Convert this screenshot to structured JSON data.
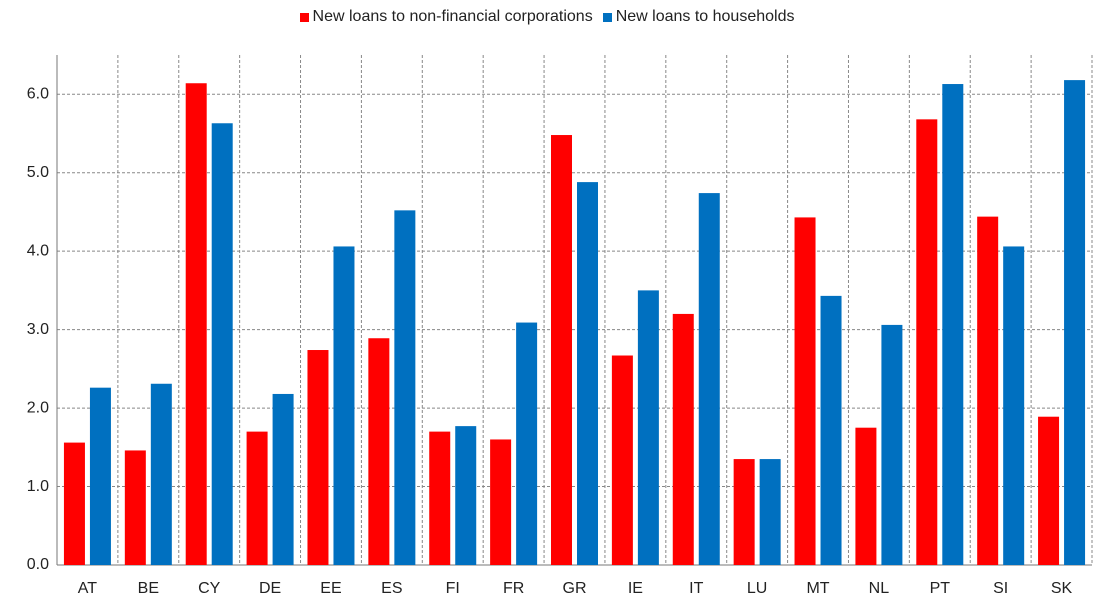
{
  "chart_data": {
    "type": "bar",
    "categories": [
      "AT",
      "BE",
      "CY",
      "DE",
      "EE",
      "ES",
      "FI",
      "FR",
      "GR",
      "IE",
      "IT",
      "LU",
      "MT",
      "NL",
      "PT",
      "SI",
      "SK"
    ],
    "series": [
      {
        "name": "New loans to non-financial corporations",
        "color": "#ff0000",
        "values": [
          1.56,
          1.46,
          6.14,
          1.7,
          2.74,
          2.89,
          1.7,
          1.6,
          5.48,
          2.67,
          3.2,
          1.35,
          4.43,
          1.75,
          5.68,
          4.44,
          1.89
        ]
      },
      {
        "name": "New loans to households",
        "color": "#0070c0",
        "values": [
          2.26,
          2.31,
          5.63,
          2.18,
          4.06,
          4.52,
          1.77,
          3.09,
          4.88,
          3.5,
          4.74,
          1.35,
          3.43,
          3.06,
          6.13,
          4.06,
          6.18
        ]
      }
    ],
    "ylim": [
      0,
      6.5
    ],
    "yticks": [
      {
        "value": 0,
        "label": "0.0"
      },
      {
        "value": 1,
        "label": "1.0"
      },
      {
        "value": 2,
        "label": "2.0"
      },
      {
        "value": 3,
        "label": "3.0"
      },
      {
        "value": 4,
        "label": "4.0"
      },
      {
        "value": 5,
        "label": "5.0"
      },
      {
        "value": 6,
        "label": "6.0"
      }
    ],
    "grid": true
  }
}
